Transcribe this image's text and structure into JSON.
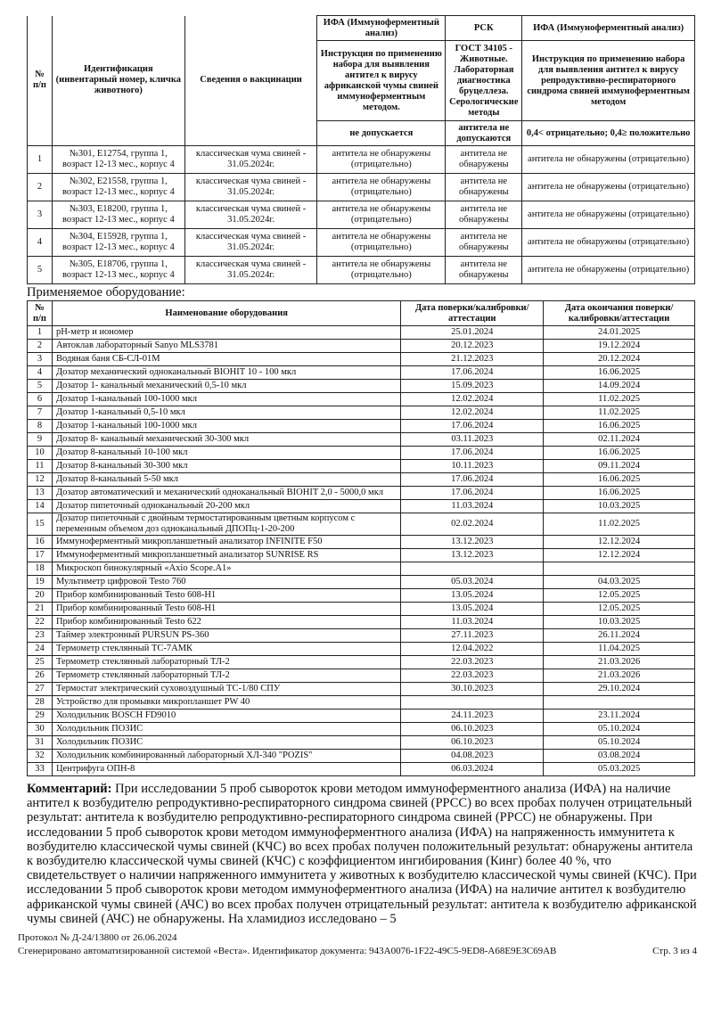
{
  "results_table": {
    "headers": {
      "num": "№ п/п",
      "ident": "Идентификация (инвентарный номер, кличка животного)",
      "vacc": "Сведения о вакцинации",
      "ifa_asf_method": "ИФА (Иммуноферментный анализ)",
      "ifa_asf_doc": "Инструкция по применению набора для выявления антител к вирусу африканской чумы свиней иммуноферментным методом.",
      "ifa_asf_norm": "не допускается",
      "rsk_method": "РСК",
      "rsk_doc": "ГОСТ 34105 - Животные. Лабораторная диагностика бруцеллеза. Серологические методы",
      "rsk_norm": "антитела не допускаются",
      "ifa_prrs_method": "ИФА (Иммуноферментный анализ)",
      "ifa_prrs_doc": "Инструкция по применению набора для выявления антител к вирусу репродуктивно-респираторного синдрома свиней иммуноферментным методом",
      "ifa_prrs_norm": "0,4< отрицательно; 0,4≥ положительно"
    },
    "rows": [
      {
        "num": "1",
        "ident": "№301, E12754, группа 1, возраст 12-13 мес., корпус 4",
        "vacc": "классическая чума свиней - 31.05.2024г.",
        "asf": "антитела не обнаружены (отрицательно)",
        "rsk": "антитела не обнаружены",
        "prrs": "антитела не обнаружены (отрицательно)"
      },
      {
        "num": "2",
        "ident": "№302, E21558, группа 1, возраст 12-13 мес., корпус 4",
        "vacc": "классическая чума свиней - 31.05.2024г.",
        "asf": "антитела не обнаружены (отрицательно)",
        "rsk": "антитела не обнаружены",
        "prrs": "антитела не обнаружены (отрицательно)"
      },
      {
        "num": "3",
        "ident": "№303, E18200, группа 1, возраст 12-13 мес., корпус 4",
        "vacc": "классическая чума свиней - 31.05.2024г.",
        "asf": "антитела не обнаружены (отрицательно)",
        "rsk": "антитела не обнаружены",
        "prrs": "антитела не обнаружены (отрицательно)"
      },
      {
        "num": "4",
        "ident": "№304, E15928, группа 1, возраст 12-13 мес., корпус 4",
        "vacc": "классическая чума свиней - 31.05.2024г.",
        "asf": "антитела не обнаружены (отрицательно)",
        "rsk": "антитела не обнаружены",
        "prrs": "антитела не обнаружены (отрицательно)"
      },
      {
        "num": "5",
        "ident": "№305, E18706, группа 1, возраст 12-13 мес., корпус 4",
        "vacc": "классическая чума свиней - 31.05.2024г.",
        "asf": "антитела не обнаружены (отрицательно)",
        "rsk": "антитела не обнаружены",
        "prrs": "антитела не обнаружены (отрицательно)"
      }
    ]
  },
  "equipment": {
    "title": "Применяемое оборудование:",
    "headers": {
      "num": "№ п/п",
      "name": "Наименование оборудования",
      "start": "Дата поверки/калибровки/аттестации",
      "end": "Дата окончания поверки/калибровки/аттестации"
    },
    "rows": [
      {
        "num": "1",
        "name": "pH-метр и иономер",
        "start": "25.01.2024",
        "end": "24.01.2025"
      },
      {
        "num": "2",
        "name": "Автоклав лабораторный Sanyo MLS3781",
        "start": "20.12.2023",
        "end": "19.12.2024"
      },
      {
        "num": "3",
        "name": "Водяная баня СБ-СЛ-01М",
        "start": "21.12.2023",
        "end": "20.12.2024"
      },
      {
        "num": "4",
        "name": "Дозатор механический одноканальный BIOHIT 10 - 100 мкл",
        "start": "17.06.2024",
        "end": "16.06.2025"
      },
      {
        "num": "5",
        "name": "Дозатор 1- канальный механический 0,5-10 мкл",
        "start": "15.09.2023",
        "end": "14.09.2024"
      },
      {
        "num": "6",
        "name": "Дозатор 1-канальный 100-1000 мкл",
        "start": "12.02.2024",
        "end": "11.02.2025"
      },
      {
        "num": "7",
        "name": "Дозатор 1-канальный 0,5-10 мкл",
        "start": "12.02.2024",
        "end": "11.02.2025"
      },
      {
        "num": "8",
        "name": "Дозатор 1-канальный 100-1000 мкл",
        "start": "17.06.2024",
        "end": "16.06.2025"
      },
      {
        "num": "9",
        "name": "Дозатор 8- канальный механический 30-300 мкл",
        "start": "03.11.2023",
        "end": "02.11.2024"
      },
      {
        "num": "10",
        "name": "Дозатор 8-канальный 10-100 мкл",
        "start": "17.06.2024",
        "end": "16.06.2025"
      },
      {
        "num": "11",
        "name": "Дозатор 8-канальный 30-300 мкл",
        "start": "10.11.2023",
        "end": "09.11.2024"
      },
      {
        "num": "12",
        "name": "Дозатор 8-канальный 5-50 мкл",
        "start": "17.06.2024",
        "end": "16.06.2025"
      },
      {
        "num": "13",
        "name": "Дозатор автоматический и механический одноканальный BIOHIT 2,0 - 5000,0 мкл",
        "start": "17.06.2024",
        "end": "16.06.2025"
      },
      {
        "num": "14",
        "name": "Дозатор пипеточный одноканальный 20-200 мкл",
        "start": "11.03.2024",
        "end": "10.03.2025"
      },
      {
        "num": "15",
        "name": "Дозатор пипеточный с двойным термостатированным цветным корпусом с переменным объемом доз одноканальный ДПОПц-1-20-200",
        "start": "02.02.2024",
        "end": "11.02.2025"
      },
      {
        "num": "16",
        "name": "Иммуноферментный микропланшетный анализатор INFINITE F50",
        "start": "13.12.2023",
        "end": "12.12.2024"
      },
      {
        "num": "17",
        "name": "Иммуноферментный микропланшетный анализатор SUNRISE RS",
        "start": "13.12.2023",
        "end": "12.12.2024"
      },
      {
        "num": "18",
        "name": "Микроскоп бинокулярный «Axio Scope.A1»",
        "start": "",
        "end": ""
      },
      {
        "num": "19",
        "name": "Мультиметр цифровой Testo 760",
        "start": "05.03.2024",
        "end": "04.03.2025"
      },
      {
        "num": "20",
        "name": "Прибор комбинированный Testo 608-H1",
        "start": "13.05.2024",
        "end": "12.05.2025"
      },
      {
        "num": "21",
        "name": "Прибор комбинированный Testo 608-H1",
        "start": "13.05.2024",
        "end": "12.05.2025"
      },
      {
        "num": "22",
        "name": "Прибор комбинированный Testo 622",
        "start": "11.03.2024",
        "end": "10.03.2025"
      },
      {
        "num": "23",
        "name": "Таймер электронный PURSUN PS-360",
        "start": "27.11.2023",
        "end": "26.11.2024"
      },
      {
        "num": "24",
        "name": "Термометр стеклянный ТС-7АМК",
        "start": "12.04.2022",
        "end": "11.04.2025"
      },
      {
        "num": "25",
        "name": "Термометр стеклянный лабораторный ТЛ-2",
        "start": "22.03.2023",
        "end": "21.03.2026"
      },
      {
        "num": "26",
        "name": "Термометр стеклянный лабораторный ТЛ-2",
        "start": "22.03.2023",
        "end": "21.03.2026"
      },
      {
        "num": "27",
        "name": "Термостат электрический суховоздушный ТС-1/80 СПУ",
        "start": "30.10.2023",
        "end": "29.10.2024"
      },
      {
        "num": "28",
        "name": "Устройство для промывки микропланшет PW 40",
        "start": "",
        "end": ""
      },
      {
        "num": "29",
        "name": "Холодильник BOSCH FD9010",
        "start": "24.11.2023",
        "end": "23.11.2024"
      },
      {
        "num": "30",
        "name": "Холодильник ПОЗИС",
        "start": "06.10.2023",
        "end": "05.10.2024"
      },
      {
        "num": "31",
        "name": "Холодильник ПОЗИС",
        "start": "06.10.2023",
        "end": "05.10.2024"
      },
      {
        "num": "32",
        "name": "Холодильник комбинированный лабораторный ХЛ-340 \"POZIS\"",
        "start": "04.08.2023",
        "end": "03.08.2024"
      },
      {
        "num": "33",
        "name": "Центрифуга ОПН-8",
        "start": "06.03.2024",
        "end": "05.03.2025"
      }
    ]
  },
  "comment": {
    "label": "Комментарий:",
    "text": " При исследовании 5 проб сывороток крови методом иммуноферментного анализа (ИФА) на наличие антител к возбудителю репродуктивно-респираторного синдрома свиней (РРСС) во всех пробах получен отрицательный результат: антитела к возбудителю репродуктивно-респираторного синдрома свиней (РРСС) не обнаружены. При исследовании 5 проб сывороток крови методом иммуноферментного анализа (ИФА) на напряженность иммунитета к возбудителю классической чумы свиней (КЧС) во всех пробах получен положительный результат: обнаружены антитела к возбудителю классической чумы свиней (КЧС) с коэффициентом ингибирования (Кинг) более 40 %, что свидетельствует о наличии напряженного иммунитета у животных к возбудителю классической чумы свиней (КЧС). При исследовании 5 проб сывороток крови методом иммуноферментного анализа (ИФА) на наличие антител к возбудителю африканской чумы свиней (АЧС) во всех пробах получен отрицательный результат: антитела к возбудителю африканской чумы свиней (АЧС) не обнаружены. На хламидиоз исследовано – 5"
  },
  "footer": {
    "protocol": "Протокол № Д-24/13800 от 26.06.2024",
    "generated": "Сгенерировано автоматизированной системой «Веста». Идентификатор документа: 943A0076-1F22-49C5-9ED8-A68E9E3C69AB",
    "page": "Стр. 3 из 4"
  }
}
